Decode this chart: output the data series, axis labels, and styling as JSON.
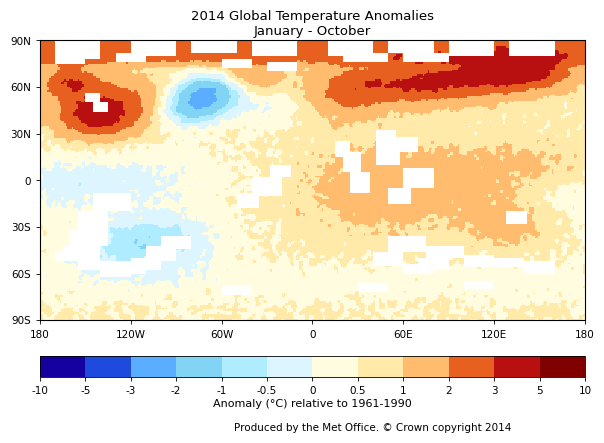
{
  "title_line1": "2014 Global Temperature Anomalies",
  "title_line2": "January - October",
  "colorbar_bounds": [
    -10,
    -5,
    -3,
    -2,
    -1,
    -0.5,
    0,
    0.5,
    1,
    2,
    3,
    5,
    10
  ],
  "colorbar_label": "Anomaly (°C) relative to 1961-1990",
  "colorbar_colors": [
    "#1500a0",
    "#1e4bdc",
    "#5badff",
    "#82d4f5",
    "#b0ecff",
    "#ddf5ff",
    "#fffce0",
    "#ffeaaa",
    "#ffbb6e",
    "#e86020",
    "#b81010",
    "#800000"
  ],
  "footer_text": "Produced by the Met Office. © Crown copyright 2014",
  "xlim": [
    -180,
    180
  ],
  "ylim": [
    -90,
    90
  ],
  "xticks": [
    -180,
    -120,
    -60,
    0,
    60,
    120,
    180
  ],
  "xticklabels": [
    "180",
    "120W",
    "60W",
    "0",
    "60E",
    "120E",
    "180"
  ],
  "yticks": [
    -90,
    -60,
    -30,
    0,
    30,
    60,
    90
  ],
  "yticklabels": [
    "90S",
    "60S",
    "30S",
    "0",
    "30N",
    "60N",
    "90N"
  ],
  "background_color": "#ffffff",
  "seed": 42
}
